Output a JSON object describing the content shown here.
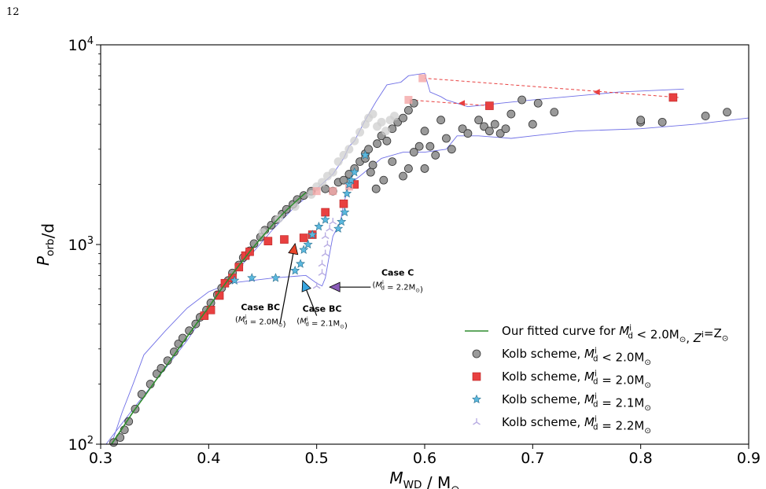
{
  "page": {
    "number": "12"
  },
  "chart_data": {
    "type": "scatter",
    "xlabel": "M_WD / M_⊙",
    "ylabel": "P_orb/d",
    "xlim": [
      0.3,
      0.9
    ],
    "ylim": [
      100,
      10000
    ],
    "yscale": "log",
    "x_ticks": [
      "0.3",
      "0.4",
      "0.5",
      "0.6",
      "0.7",
      "0.8",
      "0.9"
    ],
    "y_ticks": [
      "10^2",
      "10^3",
      "10^4"
    ],
    "grid": false,
    "legend_placement": "lower-right",
    "colors": {
      "fit": "#2e8b2e",
      "kolb_lt2": "#9a9a9a",
      "kolb_lt2_faded": "#cfcfcf",
      "kolb_20": "#e84040",
      "kolb_20_faded": "#f4a6a6",
      "kolb_21": "#5bb8de",
      "kolb_22": "#b9aee3",
      "envelope": "#6f6fe6",
      "arrow_red": "#e8452a",
      "arrow_blue": "#39a6e0",
      "arrow_purple": "#8a5cb8"
    },
    "series": [
      {
        "name": "Our fitted curve for M_d^i < 2.0M_⊙, Z^i=Z_⊙",
        "kind": "line",
        "color": "#2e8b2e",
        "points": [
          [
            0.31,
            100
          ],
          [
            0.32,
            120
          ],
          [
            0.33,
            145
          ],
          [
            0.34,
            172
          ],
          [
            0.35,
            205
          ],
          [
            0.36,
            243
          ],
          [
            0.37,
            290
          ],
          [
            0.38,
            345
          ],
          [
            0.39,
            410
          ],
          [
            0.4,
            485
          ],
          [
            0.41,
            580
          ],
          [
            0.42,
            690
          ],
          [
            0.43,
            810
          ],
          [
            0.44,
            950
          ],
          [
            0.45,
            1100
          ],
          [
            0.46,
            1270
          ],
          [
            0.47,
            1450
          ],
          [
            0.48,
            1630
          ],
          [
            0.49,
            1820
          ]
        ]
      },
      {
        "name": "Kolb scheme, M_d^i < 2.0M_⊙",
        "kind": "circle",
        "color": "#9a9a9a",
        "points": [
          [
            0.312,
            102
          ],
          [
            0.318,
            108
          ],
          [
            0.322,
            118
          ],
          [
            0.326,
            130
          ],
          [
            0.332,
            150
          ],
          [
            0.338,
            178
          ],
          [
            0.346,
            200
          ],
          [
            0.352,
            225
          ],
          [
            0.356,
            240
          ],
          [
            0.362,
            262
          ],
          [
            0.368,
            290
          ],
          [
            0.372,
            318
          ],
          [
            0.376,
            340
          ],
          [
            0.382,
            370
          ],
          [
            0.388,
            400
          ],
          [
            0.392,
            432
          ],
          [
            0.398,
            470
          ],
          [
            0.402,
            510
          ],
          [
            0.408,
            560
          ],
          [
            0.412,
            605
          ],
          [
            0.418,
            660
          ],
          [
            0.422,
            720
          ],
          [
            0.428,
            790
          ],
          [
            0.432,
            860
          ],
          [
            0.438,
            930
          ],
          [
            0.442,
            1010
          ],
          [
            0.448,
            1090
          ],
          [
            0.452,
            1180
          ],
          [
            0.458,
            1250
          ],
          [
            0.462,
            1330
          ],
          [
            0.468,
            1420
          ],
          [
            0.472,
            1500
          ],
          [
            0.478,
            1590
          ],
          [
            0.482,
            1680
          ],
          [
            0.488,
            1760
          ],
          [
            0.495,
            1850
          ],
          [
            0.508,
            1900
          ],
          [
            0.515,
            1850
          ],
          [
            0.52,
            2050
          ],
          [
            0.525,
            2100
          ],
          [
            0.53,
            2250
          ],
          [
            0.535,
            2400
          ],
          [
            0.54,
            2600
          ],
          [
            0.545,
            2850
          ],
          [
            0.548,
            3000
          ],
          [
            0.552,
            2500
          ],
          [
            0.556,
            3200
          ],
          [
            0.56,
            3500
          ],
          [
            0.565,
            3300
          ],
          [
            0.57,
            3800
          ],
          [
            0.575,
            4100
          ],
          [
            0.58,
            4300
          ],
          [
            0.585,
            4700
          ],
          [
            0.59,
            5100
          ],
          [
            0.545,
            2700
          ],
          [
            0.55,
            2300
          ],
          [
            0.555,
            1900
          ],
          [
            0.562,
            2100
          ],
          [
            0.57,
            2600
          ],
          [
            0.58,
            2200
          ],
          [
            0.585,
            2400
          ],
          [
            0.59,
            2900
          ],
          [
            0.595,
            3100
          ],
          [
            0.6,
            2400
          ],
          [
            0.6,
            3700
          ],
          [
            0.605,
            3100
          ],
          [
            0.61,
            2800
          ],
          [
            0.615,
            4200
          ],
          [
            0.62,
            3400
          ],
          [
            0.625,
            3000
          ],
          [
            0.635,
            3800
          ],
          [
            0.64,
            3600
          ],
          [
            0.65,
            4200
          ],
          [
            0.655,
            3900
          ],
          [
            0.66,
            3700
          ],
          [
            0.665,
            4000
          ],
          [
            0.67,
            3600
          ],
          [
            0.675,
            3800
          ],
          [
            0.68,
            4500
          ],
          [
            0.69,
            5300
          ],
          [
            0.7,
            4000
          ],
          [
            0.705,
            5100
          ],
          [
            0.72,
            4600
          ],
          [
            0.8,
            4100
          ],
          [
            0.8,
            4200
          ],
          [
            0.82,
            4100
          ],
          [
            0.86,
            4400
          ],
          [
            0.88,
            4600
          ]
        ]
      },
      {
        "name": "Kolb scheme, M_d^i < 2.0M_⊙ (faded)",
        "kind": "circle-faded",
        "color": "#cfcfcf",
        "points": [
          [
            0.45,
            1150
          ],
          [
            0.465,
            1350
          ],
          [
            0.48,
            1550
          ],
          [
            0.495,
            1780
          ],
          [
            0.505,
            2050
          ],
          [
            0.515,
            2300
          ],
          [
            0.52,
            2600
          ],
          [
            0.525,
            2800
          ],
          [
            0.53,
            3000
          ],
          [
            0.535,
            3300
          ],
          [
            0.54,
            3650
          ],
          [
            0.545,
            4000
          ],
          [
            0.548,
            4300
          ],
          [
            0.552,
            4500
          ],
          [
            0.556,
            3900
          ],
          [
            0.56,
            4100
          ],
          [
            0.564,
            3700
          ],
          [
            0.568,
            4200
          ],
          [
            0.572,
            4400
          ],
          [
            0.5,
            1950
          ],
          [
            0.51,
            2200
          ]
        ]
      },
      {
        "name": "Kolb scheme, M_d^i = 2.0M_⊙",
        "kind": "square",
        "color": "#e84040",
        "points": [
          [
            0.396,
            440
          ],
          [
            0.402,
            470
          ],
          [
            0.41,
            555
          ],
          [
            0.415,
            640
          ],
          [
            0.422,
            680
          ],
          [
            0.428,
            770
          ],
          [
            0.434,
            880
          ],
          [
            0.438,
            920
          ],
          [
            0.455,
            1040
          ],
          [
            0.47,
            1060
          ],
          [
            0.488,
            1080
          ],
          [
            0.496,
            1120
          ],
          [
            0.508,
            1450
          ],
          [
            0.525,
            1600
          ],
          [
            0.535,
            2000
          ],
          [
            0.66,
            4950
          ],
          [
            0.83,
            5450
          ]
        ]
      },
      {
        "name": "Kolb scheme, M_d^i = 2.0M_⊙ (faded)",
        "kind": "square-faded",
        "color": "#f4a6a6",
        "points": [
          [
            0.5,
            1850
          ],
          [
            0.515,
            1850
          ],
          [
            0.53,
            1950
          ],
          [
            0.585,
            5300
          ],
          [
            0.598,
            6800
          ]
        ]
      },
      {
        "name": "Kolb scheme, M_d^i = 2.1M_⊙",
        "kind": "star",
        "color": "#5bb8de",
        "points": [
          [
            0.424,
            660
          ],
          [
            0.44,
            680
          ],
          [
            0.462,
            680
          ],
          [
            0.48,
            740
          ],
          [
            0.485,
            800
          ],
          [
            0.488,
            940
          ],
          [
            0.492,
            1000
          ],
          [
            0.496,
            1120
          ],
          [
            0.502,
            1230
          ],
          [
            0.508,
            1330
          ],
          [
            0.52,
            1200
          ],
          [
            0.523,
            1300
          ],
          [
            0.526,
            1450
          ],
          [
            0.528,
            1800
          ],
          [
            0.53,
            2000
          ],
          [
            0.532,
            2100
          ],
          [
            0.535,
            2300
          ],
          [
            0.545,
            2800
          ]
        ]
      },
      {
        "name": "Kolb scheme, M_d^i = 2.2M_⊙",
        "kind": "tri",
        "color": "#b9aee3",
        "points": [
          [
            0.5,
            620
          ],
          [
            0.505,
            720
          ],
          [
            0.505,
            800
          ],
          [
            0.508,
            900
          ],
          [
            0.51,
            1000
          ],
          [
            0.508,
            1100
          ],
          [
            0.512,
            1200
          ],
          [
            0.515,
            1300
          ]
        ]
      }
    ],
    "envelope": {
      "color": "#6f6fe6",
      "upper": [
        [
          0.305,
          100
        ],
        [
          0.33,
          150
        ],
        [
          0.36,
          240
        ],
        [
          0.38,
          330
        ],
        [
          0.4,
          480
        ],
        [
          0.42,
          680
        ],
        [
          0.44,
          900
        ],
        [
          0.46,
          1200
        ],
        [
          0.48,
          1550
        ],
        [
          0.5,
          1900
        ],
        [
          0.515,
          2250
        ],
        [
          0.525,
          2700
        ],
        [
          0.53,
          3100
        ],
        [
          0.535,
          3300
        ],
        [
          0.545,
          4200
        ],
        [
          0.555,
          5200
        ],
        [
          0.565,
          6300
        ],
        [
          0.578,
          6500
        ],
        [
          0.585,
          7000
        ],
        [
          0.6,
          7200
        ],
        [
          0.605,
          5800
        ],
        [
          0.615,
          5500
        ],
        [
          0.62,
          5300
        ],
        [
          0.64,
          4900
        ],
        [
          0.7,
          5300
        ],
        [
          0.78,
          5800
        ],
        [
          0.84,
          6000
        ]
      ],
      "lower": [
        [
          0.9,
          4300
        ],
        [
          0.85,
          4000
        ],
        [
          0.8,
          3800
        ],
        [
          0.74,
          3700
        ],
        [
          0.7,
          3500
        ],
        [
          0.68,
          3400
        ],
        [
          0.65,
          3500
        ],
        [
          0.63,
          3500
        ],
        [
          0.62,
          3000
        ],
        [
          0.6,
          2900
        ],
        [
          0.58,
          2900
        ],
        [
          0.56,
          2700
        ],
        [
          0.54,
          2200
        ],
        [
          0.53,
          2000
        ],
        [
          0.525,
          1600
        ],
        [
          0.522,
          1300
        ],
        [
          0.515,
          1100
        ],
        [
          0.512,
          900
        ],
        [
          0.508,
          680
        ],
        [
          0.505,
          620
        ],
        [
          0.5,
          640
        ],
        [
          0.49,
          700
        ],
        [
          0.46,
          680
        ],
        [
          0.44,
          660
        ],
        [
          0.42,
          640
        ],
        [
          0.4,
          580
        ],
        [
          0.38,
          480
        ],
        [
          0.36,
          370
        ],
        [
          0.34,
          280
        ],
        [
          0.33,
          200
        ],
        [
          0.32,
          145
        ],
        [
          0.31,
          100
        ]
      ]
    },
    "trajectories": [
      {
        "from": [
          0.835,
          5450
        ],
        "to": [
          0.6,
          6800
        ],
        "arrow_at": [
          0.76,
          5800
        ],
        "color": "#e84040"
      },
      {
        "from": [
          0.66,
          4950
        ],
        "to": [
          0.585,
          5300
        ],
        "arrow_at": [
          0.635,
          5100
        ],
        "color": "#e84040"
      }
    ],
    "annotations": [
      {
        "title": "Case BC",
        "sub": "(M_d^i = 2.0M_⊙)",
        "text_at": [
          0.448,
          470
        ],
        "arrow_from": [
          0.466,
          400
        ],
        "arrow_to": [
          0.48,
          1010
        ],
        "color": "#e8452a"
      },
      {
        "title": "Case BC",
        "sub": "(M_d^i = 2.1M_⊙)",
        "text_at": [
          0.505,
          460
        ],
        "arrow_from": [
          0.5,
          440
        ],
        "arrow_to": [
          0.487,
          660
        ],
        "color": "#39a6e0"
      },
      {
        "title": "Case C",
        "sub": "(M_d^i = 2.2M_⊙)",
        "text_at": [
          0.575,
          700
        ],
        "arrow_from": [
          0.55,
          612
        ],
        "arrow_to": [
          0.512,
          612
        ],
        "color": "#8a5cb8"
      }
    ]
  },
  "legend": [
    {
      "marker": "line",
      "label": "Our fitted curve for ",
      "math": "M_d^i < 2.0M_⊙, Z^i=Z_⊙"
    },
    {
      "marker": "circle",
      "label": "Kolb scheme, ",
      "math": "M_d^i < 2.0M_⊙"
    },
    {
      "marker": "square",
      "label": "Kolb scheme, ",
      "math": "M_d^i = 2.0M_⊙"
    },
    {
      "marker": "star",
      "label": "Kolb scheme, ",
      "math": "M_d^i = 2.1M_⊙"
    },
    {
      "marker": "tri",
      "label": "Kolb scheme, ",
      "math": "M_d^i = 2.2M_⊙"
    }
  ]
}
